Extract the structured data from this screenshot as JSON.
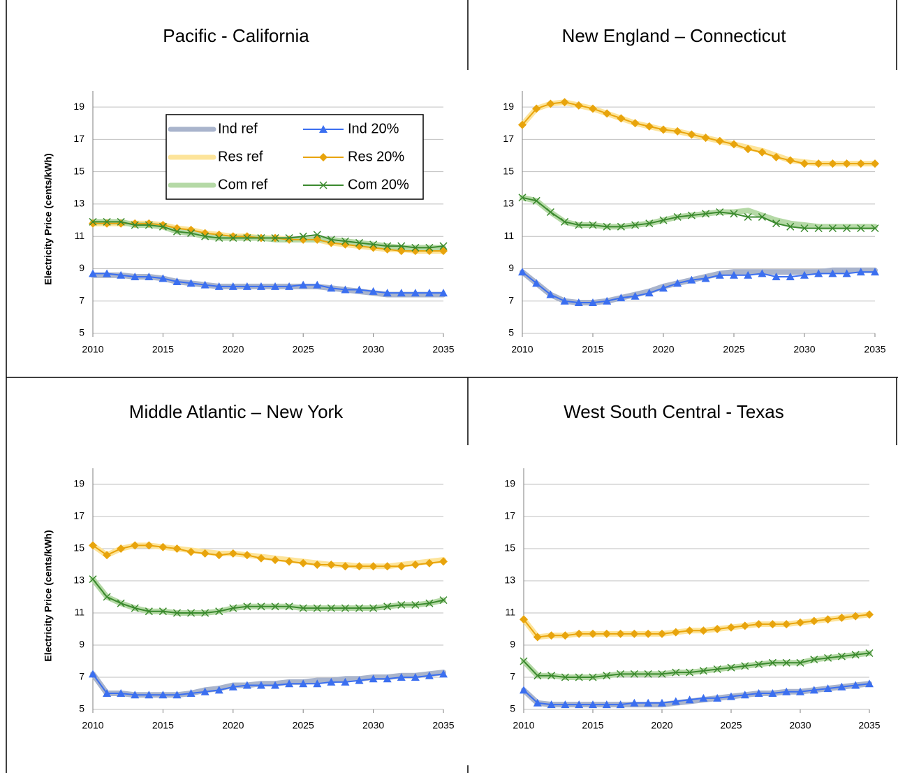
{
  "chart_data": [
    {
      "type": "line",
      "title": "Pacific - California",
      "ylabel": "Electricity Price (cents/kWh)",
      "legend": true,
      "x": [
        2010,
        2011,
        2012,
        2013,
        2014,
        2015,
        2016,
        2017,
        2018,
        2019,
        2020,
        2021,
        2022,
        2023,
        2024,
        2025,
        2026,
        2027,
        2028,
        2029,
        2030,
        2031,
        2032,
        2033,
        2034,
        2035
      ],
      "xlim": [
        2010,
        2035
      ],
      "xticks": [
        2010,
        2015,
        2020,
        2025,
        2030,
        2035
      ],
      "ylim": [
        5,
        20
      ],
      "yticks": [
        5,
        7,
        9,
        11,
        13,
        15,
        17,
        19
      ],
      "grid": true,
      "series": [
        {
          "name": "Ind ref",
          "color": "#a9b4cc",
          "style": "band",
          "values": [
            8.6,
            8.6,
            8.6,
            8.5,
            8.5,
            8.4,
            8.2,
            8.1,
            8.0,
            7.9,
            7.9,
            7.9,
            7.9,
            7.9,
            7.9,
            7.9,
            7.9,
            7.8,
            7.7,
            7.6,
            7.5,
            7.4,
            7.4,
            7.4,
            7.4,
            7.4
          ]
        },
        {
          "name": "Ind 20%",
          "color": "#3b6ff0",
          "marker": "triangle",
          "values": [
            8.7,
            8.7,
            8.6,
            8.5,
            8.5,
            8.4,
            8.2,
            8.1,
            8.0,
            7.9,
            7.9,
            7.9,
            7.9,
            7.9,
            7.9,
            8.0,
            8.0,
            7.8,
            7.7,
            7.7,
            7.6,
            7.5,
            7.5,
            7.5,
            7.5,
            7.5
          ]
        },
        {
          "name": "Res ref",
          "color": "#fde49a",
          "style": "band",
          "values": [
            11.8,
            11.8,
            11.8,
            11.8,
            11.8,
            11.7,
            11.5,
            11.4,
            11.2,
            11.1,
            11.0,
            11.0,
            10.9,
            10.9,
            10.8,
            10.8,
            10.8,
            10.6,
            10.5,
            10.4,
            10.3,
            10.2,
            10.2,
            10.1,
            10.1,
            10.1
          ]
        },
        {
          "name": "Res 20%",
          "color": "#e8a40c",
          "marker": "diamond",
          "values": [
            11.8,
            11.8,
            11.8,
            11.8,
            11.8,
            11.7,
            11.5,
            11.4,
            11.2,
            11.1,
            11.0,
            11.0,
            10.9,
            10.9,
            10.8,
            10.8,
            10.8,
            10.6,
            10.5,
            10.4,
            10.3,
            10.2,
            10.1,
            10.1,
            10.1,
            10.1
          ]
        },
        {
          "name": "Com ref",
          "color": "#b5d9a6",
          "style": "band",
          "values": [
            11.9,
            11.9,
            11.9,
            11.7,
            11.7,
            11.6,
            11.3,
            11.2,
            11.0,
            10.9,
            10.9,
            10.9,
            10.9,
            10.8,
            10.8,
            10.8,
            10.8,
            10.8,
            10.7,
            10.6,
            10.5,
            10.4,
            10.3,
            10.3,
            10.3,
            10.3
          ]
        },
        {
          "name": "Com 20%",
          "color": "#3b8a2e",
          "marker": "x",
          "values": [
            11.9,
            11.9,
            11.9,
            11.7,
            11.7,
            11.6,
            11.3,
            11.2,
            11.0,
            10.9,
            10.9,
            10.9,
            10.9,
            10.9,
            10.9,
            11.0,
            11.1,
            10.8,
            10.7,
            10.6,
            10.5,
            10.4,
            10.4,
            10.3,
            10.3,
            10.4
          ]
        }
      ]
    },
    {
      "type": "line",
      "title": "New England – Connecticut",
      "x": [
        2010,
        2011,
        2012,
        2013,
        2014,
        2015,
        2016,
        2017,
        2018,
        2019,
        2020,
        2021,
        2022,
        2023,
        2024,
        2025,
        2026,
        2027,
        2028,
        2029,
        2030,
        2031,
        2032,
        2033,
        2034,
        2035
      ],
      "xlim": [
        2010,
        2035
      ],
      "xticks": [
        2010,
        2015,
        2020,
        2025,
        2030,
        2035
      ],
      "ylim": [
        5,
        20
      ],
      "yticks": [
        5,
        7,
        9,
        11,
        13,
        15,
        17,
        19
      ],
      "grid": true,
      "series": [
        {
          "name": "Ind ref",
          "color": "#a9b4cc",
          "style": "band",
          "values": [
            8.8,
            8.1,
            7.4,
            7.0,
            6.9,
            6.9,
            7.0,
            7.2,
            7.4,
            7.6,
            7.9,
            8.1,
            8.3,
            8.5,
            8.7,
            8.8,
            8.8,
            8.8,
            8.8,
            8.8,
            8.8,
            8.8,
            8.9,
            8.9,
            8.9,
            8.9
          ]
        },
        {
          "name": "Ind 20%",
          "color": "#3b6ff0",
          "marker": "triangle",
          "values": [
            8.8,
            8.1,
            7.4,
            7.0,
            6.9,
            6.9,
            7.0,
            7.2,
            7.3,
            7.5,
            7.8,
            8.1,
            8.3,
            8.4,
            8.6,
            8.6,
            8.6,
            8.7,
            8.5,
            8.5,
            8.6,
            8.7,
            8.7,
            8.7,
            8.8,
            8.8
          ]
        },
        {
          "name": "Res ref",
          "color": "#fde49a",
          "style": "band",
          "values": [
            17.9,
            18.9,
            19.2,
            19.3,
            19.1,
            18.9,
            18.6,
            18.3,
            18.0,
            17.8,
            17.6,
            17.5,
            17.3,
            17.1,
            16.9,
            16.7,
            16.5,
            16.3,
            16.0,
            15.7,
            15.6,
            15.5,
            15.5,
            15.5,
            15.5,
            15.5
          ]
        },
        {
          "name": "Res 20%",
          "color": "#e8a40c",
          "marker": "diamond",
          "values": [
            17.9,
            18.9,
            19.2,
            19.3,
            19.1,
            18.9,
            18.6,
            18.3,
            18.0,
            17.8,
            17.6,
            17.5,
            17.3,
            17.1,
            16.9,
            16.7,
            16.4,
            16.2,
            15.9,
            15.7,
            15.5,
            15.5,
            15.5,
            15.5,
            15.5,
            15.5
          ]
        },
        {
          "name": "Com ref",
          "color": "#b5d9a6",
          "style": "band",
          "values": [
            13.4,
            13.2,
            12.5,
            11.9,
            11.7,
            11.7,
            11.6,
            11.6,
            11.7,
            11.8,
            12.0,
            12.2,
            12.3,
            12.4,
            12.5,
            12.5,
            12.6,
            12.3,
            12.0,
            11.8,
            11.7,
            11.6,
            11.6,
            11.6,
            11.6,
            11.6
          ]
        },
        {
          "name": "Com 20%",
          "color": "#3b8a2e",
          "marker": "x",
          "values": [
            13.4,
            13.2,
            12.5,
            11.9,
            11.7,
            11.7,
            11.6,
            11.6,
            11.7,
            11.8,
            12.0,
            12.2,
            12.3,
            12.4,
            12.5,
            12.4,
            12.2,
            12.2,
            11.8,
            11.6,
            11.5,
            11.5,
            11.5,
            11.5,
            11.5,
            11.5
          ]
        }
      ]
    },
    {
      "type": "line",
      "title": "Middle Atlantic – New York",
      "ylabel": "Electricity Price (cents/kWh)",
      "x": [
        2010,
        2011,
        2012,
        2013,
        2014,
        2015,
        2016,
        2017,
        2018,
        2019,
        2020,
        2021,
        2022,
        2023,
        2024,
        2025,
        2026,
        2027,
        2028,
        2029,
        2030,
        2031,
        2032,
        2033,
        2034,
        2035
      ],
      "xlim": [
        2010,
        2035
      ],
      "xticks": [
        2010,
        2015,
        2020,
        2025,
        2030,
        2035
      ],
      "ylim": [
        5,
        20
      ],
      "yticks": [
        5,
        7,
        9,
        11,
        13,
        15,
        17,
        19
      ],
      "grid": true,
      "series": [
        {
          "name": "Ind ref",
          "color": "#a9b4cc",
          "style": "band",
          "values": [
            7.2,
            6.0,
            6.0,
            5.9,
            5.9,
            5.9,
            5.9,
            6.0,
            6.2,
            6.3,
            6.5,
            6.5,
            6.6,
            6.6,
            6.7,
            6.7,
            6.8,
            6.8,
            6.9,
            6.9,
            7.0,
            7.0,
            7.1,
            7.1,
            7.2,
            7.3
          ]
        },
        {
          "name": "Ind 20%",
          "color": "#3b6ff0",
          "marker": "triangle",
          "values": [
            7.2,
            6.0,
            6.0,
            5.9,
            5.9,
            5.9,
            5.9,
            6.0,
            6.1,
            6.2,
            6.4,
            6.5,
            6.5,
            6.5,
            6.6,
            6.6,
            6.6,
            6.7,
            6.7,
            6.8,
            6.9,
            6.9,
            7.0,
            7.0,
            7.1,
            7.2
          ]
        },
        {
          "name": "Res ref",
          "color": "#fde49a",
          "style": "band",
          "values": [
            15.2,
            14.6,
            15.0,
            15.2,
            15.2,
            15.1,
            15.0,
            14.9,
            14.8,
            14.7,
            14.7,
            14.6,
            14.5,
            14.4,
            14.3,
            14.2,
            14.1,
            14.0,
            14.0,
            13.9,
            13.9,
            13.9,
            14.0,
            14.1,
            14.2,
            14.3
          ]
        },
        {
          "name": "Res 20%",
          "color": "#e8a40c",
          "marker": "diamond",
          "values": [
            15.2,
            14.6,
            15.0,
            15.2,
            15.2,
            15.1,
            15.0,
            14.8,
            14.7,
            14.6,
            14.7,
            14.6,
            14.4,
            14.3,
            14.2,
            14.1,
            14.0,
            14.0,
            13.9,
            13.9,
            13.9,
            13.9,
            13.9,
            14.0,
            14.1,
            14.2
          ]
        },
        {
          "name": "Com ref",
          "color": "#b5d9a6",
          "style": "band",
          "values": [
            13.1,
            12.0,
            11.6,
            11.3,
            11.1,
            11.1,
            11.0,
            11.0,
            11.0,
            11.1,
            11.3,
            11.4,
            11.4,
            11.4,
            11.4,
            11.3,
            11.3,
            11.3,
            11.3,
            11.3,
            11.3,
            11.4,
            11.5,
            11.5,
            11.6,
            11.8
          ]
        },
        {
          "name": "Com 20%",
          "color": "#3b8a2e",
          "marker": "x",
          "values": [
            13.1,
            12.0,
            11.6,
            11.3,
            11.1,
            11.1,
            11.0,
            11.0,
            11.0,
            11.1,
            11.3,
            11.4,
            11.4,
            11.4,
            11.4,
            11.3,
            11.3,
            11.3,
            11.3,
            11.3,
            11.3,
            11.4,
            11.5,
            11.5,
            11.6,
            11.8
          ]
        }
      ]
    },
    {
      "type": "line",
      "title": "West South Central - Texas",
      "x": [
        2010,
        2011,
        2012,
        2013,
        2014,
        2015,
        2016,
        2017,
        2018,
        2019,
        2020,
        2021,
        2022,
        2023,
        2024,
        2025,
        2026,
        2027,
        2028,
        2029,
        2030,
        2031,
        2032,
        2033,
        2034,
        2035
      ],
      "xlim": [
        2010,
        2035
      ],
      "xticks": [
        2010,
        2015,
        2020,
        2025,
        2030,
        2035
      ],
      "ylim": [
        5,
        20
      ],
      "yticks": [
        5,
        7,
        9,
        11,
        13,
        15,
        17,
        19
      ],
      "grid": true,
      "series": [
        {
          "name": "Ind ref",
          "color": "#a9b4cc",
          "style": "band",
          "values": [
            6.2,
            5.4,
            5.3,
            5.3,
            5.3,
            5.3,
            5.3,
            5.3,
            5.3,
            5.3,
            5.3,
            5.4,
            5.5,
            5.6,
            5.7,
            5.8,
            5.9,
            6.0,
            6.0,
            6.1,
            6.1,
            6.2,
            6.3,
            6.4,
            6.5,
            6.6
          ]
        },
        {
          "name": "Ind 20%",
          "color": "#3b6ff0",
          "marker": "triangle",
          "values": [
            6.2,
            5.4,
            5.3,
            5.3,
            5.3,
            5.3,
            5.3,
            5.3,
            5.4,
            5.4,
            5.4,
            5.5,
            5.6,
            5.7,
            5.7,
            5.8,
            5.9,
            6.0,
            6.0,
            6.1,
            6.1,
            6.2,
            6.3,
            6.4,
            6.5,
            6.6
          ]
        },
        {
          "name": "Res ref",
          "color": "#fde49a",
          "style": "band",
          "values": [
            10.6,
            9.5,
            9.6,
            9.6,
            9.7,
            9.7,
            9.7,
            9.7,
            9.7,
            9.7,
            9.7,
            9.8,
            9.9,
            9.9,
            10.0,
            10.1,
            10.2,
            10.3,
            10.3,
            10.3,
            10.4,
            10.5,
            10.6,
            10.7,
            10.8,
            10.9
          ]
        },
        {
          "name": "Res 20%",
          "color": "#e8a40c",
          "marker": "diamond",
          "values": [
            10.6,
            9.5,
            9.6,
            9.6,
            9.7,
            9.7,
            9.7,
            9.7,
            9.7,
            9.7,
            9.7,
            9.8,
            9.9,
            9.9,
            10.0,
            10.1,
            10.2,
            10.3,
            10.3,
            10.3,
            10.4,
            10.5,
            10.6,
            10.7,
            10.8,
            10.9
          ]
        },
        {
          "name": "Com ref",
          "color": "#b5d9a6",
          "style": "band",
          "values": [
            8.0,
            7.1,
            7.1,
            7.0,
            7.0,
            7.0,
            7.1,
            7.2,
            7.2,
            7.2,
            7.2,
            7.3,
            7.3,
            7.4,
            7.5,
            7.6,
            7.7,
            7.8,
            7.9,
            7.9,
            7.9,
            8.1,
            8.2,
            8.3,
            8.4,
            8.5
          ]
        },
        {
          "name": "Com 20%",
          "color": "#3b8a2e",
          "marker": "x",
          "values": [
            8.0,
            7.1,
            7.1,
            7.0,
            7.0,
            7.0,
            7.1,
            7.2,
            7.2,
            7.2,
            7.2,
            7.3,
            7.3,
            7.4,
            7.5,
            7.6,
            7.7,
            7.8,
            7.9,
            7.9,
            7.9,
            8.1,
            8.2,
            8.3,
            8.4,
            8.5
          ]
        }
      ]
    }
  ]
}
